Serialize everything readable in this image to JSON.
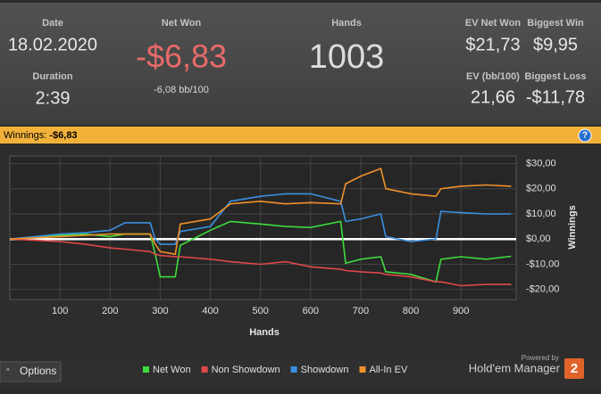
{
  "stats": {
    "date_label": "Date",
    "date": "18.02.2020",
    "duration_label": "Duration",
    "duration": "2:39",
    "net_won_label": "Net Won",
    "net_won": "-$6,83",
    "net_won_bb": "-6,08 bb/100",
    "hands_label": "Hands",
    "hands": "1003",
    "ev_net_won_label": "EV Net Won",
    "ev_net_won": "$21,73",
    "biggest_win_label": "Biggest Win",
    "biggest_win": "$9,95",
    "ev_bb_label": "EV (bb/100)",
    "ev_bb": "21,66",
    "biggest_loss_label": "Biggest Loss",
    "biggest_loss": "-$11,78"
  },
  "banner": {
    "label": "Winnings:",
    "value": "-$6,83",
    "help": "?"
  },
  "chart_data": {
    "type": "line",
    "x_label": "Hands",
    "y_label": "Winnings",
    "x": [
      0,
      50,
      100,
      150,
      200,
      230,
      280,
      290,
      300,
      330,
      340,
      400,
      440,
      500,
      550,
      600,
      660,
      670,
      700,
      740,
      750,
      800,
      850,
      860,
      900,
      950,
      1000
    ],
    "series": [
      {
        "name": "Net Won",
        "color": "#3ddc3d",
        "values": [
          0,
          0.5,
          1.5,
          2,
          1,
          2,
          2,
          -6,
          -15,
          -15,
          -2.5,
          3.5,
          7,
          6,
          5,
          4.6,
          7,
          -9.6,
          -8,
          -7,
          -13,
          -14,
          -17,
          -8,
          -7,
          -8,
          -6.83
        ]
      },
      {
        "name": "Non Showdown",
        "color": "#e04848",
        "values": [
          0,
          -0.5,
          -1,
          -2,
          -3.5,
          -4,
          -5,
          -6,
          -6.5,
          -7,
          -7,
          -8,
          -9,
          -10,
          -9,
          -11,
          -12,
          -12.5,
          -13,
          -13.5,
          -14,
          -15,
          -17,
          -17,
          -18.5,
          -18,
          -18
        ]
      },
      {
        "name": "Showdown",
        "color": "#3a8fe0",
        "values": [
          0,
          1,
          2,
          2.5,
          3.5,
          6.5,
          6.5,
          0,
          -2,
          -2,
          3,
          5,
          15,
          17,
          18,
          18,
          15,
          7,
          8,
          10,
          1,
          -1,
          0,
          11,
          10.5,
          10,
          10
        ]
      },
      {
        "name": "All-In EV",
        "color": "#f0902a",
        "values": [
          0,
          0.5,
          1,
          1.5,
          2,
          2,
          2,
          -2,
          -5,
          -6,
          6,
          8,
          14,
          15,
          14,
          14.5,
          14,
          22,
          25,
          28,
          20,
          18,
          17,
          20,
          21,
          21.5,
          21
        ]
      }
    ],
    "xlim": [
      0,
      1010
    ],
    "xticks": [
      100,
      200,
      300,
      400,
      500,
      600,
      700,
      800,
      900
    ],
    "ylim": [
      -24,
      33
    ],
    "yticks": [
      {
        "value": -20,
        "label": "-$20,00"
      },
      {
        "value": -10,
        "label": "-$10,00"
      },
      {
        "value": 0,
        "label": "$0,00"
      },
      {
        "value": 10,
        "label": "$10,00"
      },
      {
        "value": 20,
        "label": "$20,00"
      },
      {
        "value": 30,
        "label": "$30,00"
      }
    ],
    "grid": true
  },
  "footer": {
    "options": "Options",
    "powered_by": "Powered by",
    "brand": "Hold'em Manager",
    "logo": "2"
  }
}
